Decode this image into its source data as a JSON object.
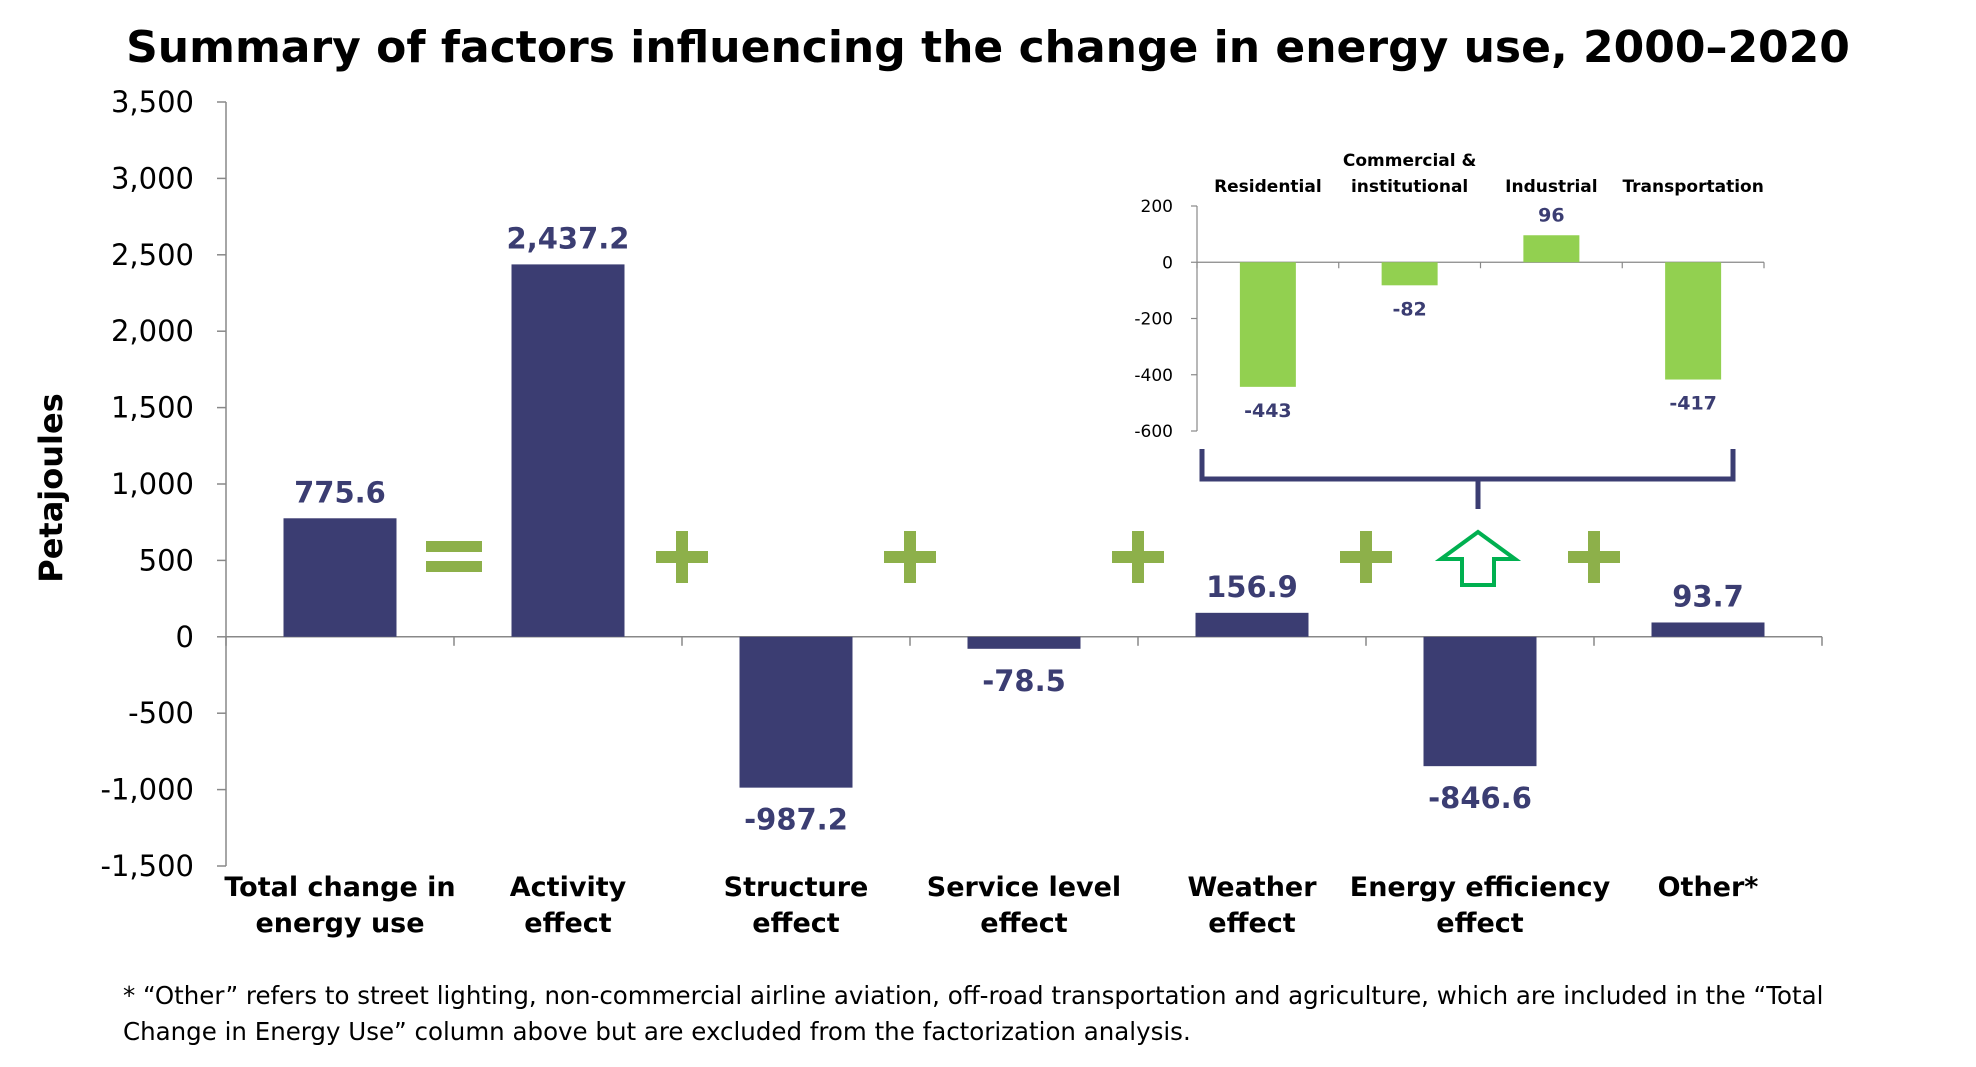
{
  "colors": {
    "bar": "#3b3d72",
    "inset_bar": "#92d050",
    "operator": "#8db04a",
    "arrow": "#00b050",
    "bracket": "#3b3d72",
    "axis": "#888888"
  },
  "chart_data": [
    {
      "type": "bar",
      "title": "Summary of factors influencing the change in energy use, 2000–2020",
      "ylabel": "Petajoules",
      "xlabel": "",
      "ylim": [
        -1500,
        3500
      ],
      "yticks": [
        -1500,
        -1000,
        -500,
        0,
        500,
        1000,
        1500,
        2000,
        2500,
        3000,
        3500
      ],
      "ytick_labels": [
        "-1,500",
        "-1,000",
        "-500",
        "0",
        "500",
        "1,000",
        "1,500",
        "2,000",
        "2,500",
        "3,000",
        "3,500"
      ],
      "grid": false,
      "categories": [
        [
          "Total change in",
          "energy use"
        ],
        [
          "Activity",
          "effect"
        ],
        [
          "Structure",
          "effect"
        ],
        [
          "Service level",
          "effect"
        ],
        [
          "Weather",
          "effect"
        ],
        [
          "Energy efficiency",
          "effect"
        ],
        [
          "Other*"
        ]
      ],
      "values": [
        775.6,
        2437.2,
        -987.2,
        -78.5,
        156.9,
        -846.6,
        93.7
      ],
      "data_labels": [
        "775.6",
        "2,437.2",
        "-987.2",
        "-78.5",
        "156.9",
        "-846.6",
        "93.7"
      ],
      "operators": [
        "=",
        "+",
        "+",
        "+",
        "+",
        "+"
      ]
    },
    {
      "type": "bar",
      "title": "",
      "ylim": [
        -600,
        200
      ],
      "yticks": [
        -600,
        -400,
        -200,
        0,
        200
      ],
      "ytick_labels": [
        "-600",
        "-400",
        "-200",
        "0",
        "200"
      ],
      "grid": false,
      "categories": [
        [
          "Residential"
        ],
        [
          "Commercial &",
          "institutional"
        ],
        [
          "Industrial"
        ],
        [
          "Transportation"
        ]
      ],
      "values": [
        -443,
        -82,
        96,
        -417
      ],
      "data_labels": [
        "-443",
        "-82",
        "96",
        "-417"
      ]
    }
  ],
  "footnote": {
    "line1": "* “Other” refers to street lighting, non-commercial airline aviation, off-road transportation and agriculture, which are included in the “Total",
    "line2": "Change in Energy Use” column above but are excluded from the factorization analysis."
  }
}
